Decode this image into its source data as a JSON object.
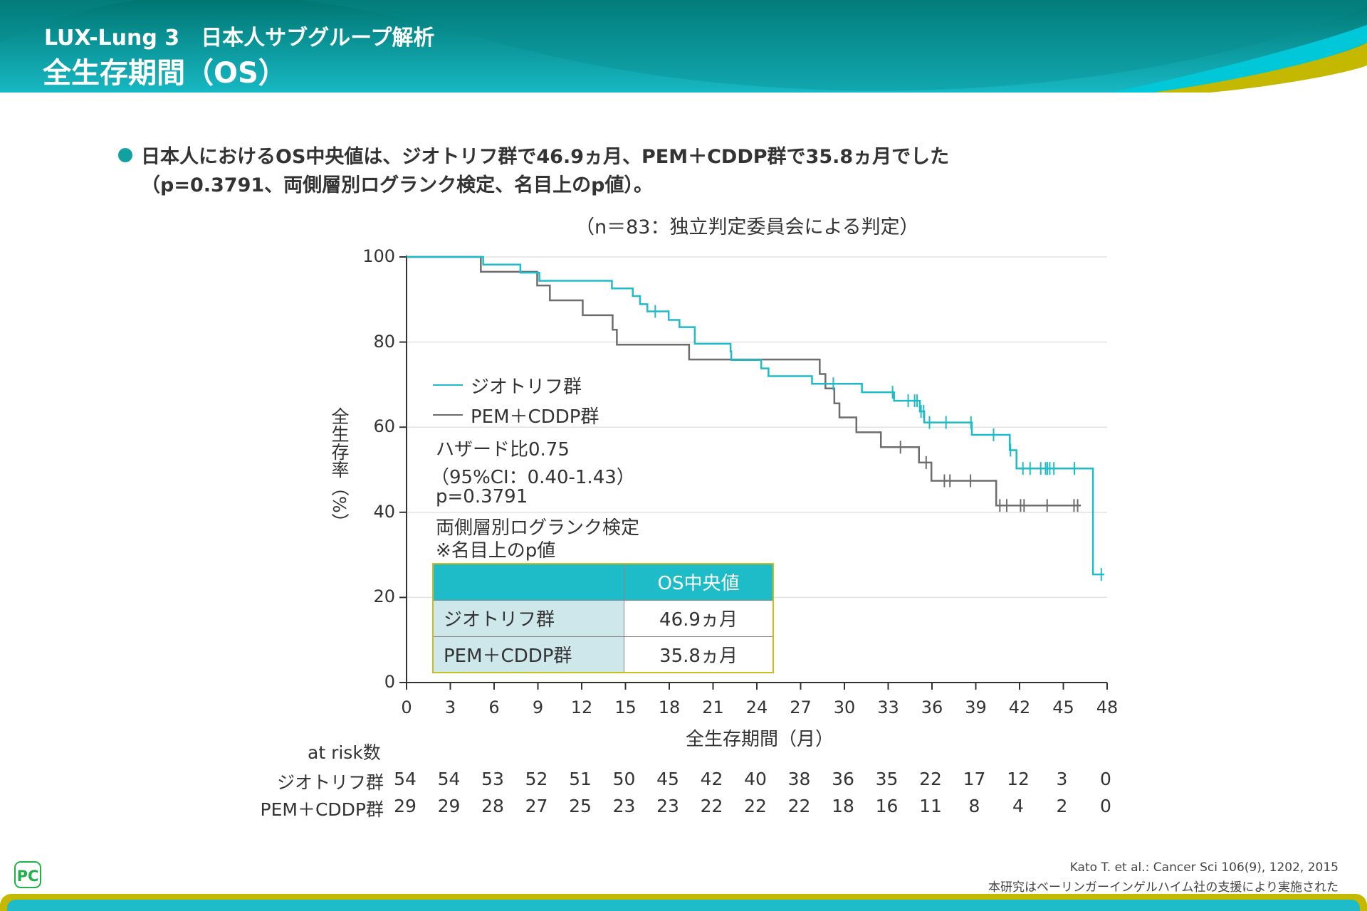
{
  "header": {
    "title_line1": "LUX-Lung 3　日本人サブグループ解析",
    "title_line2": "全生存期間（OS）"
  },
  "lead": {
    "line1": "日本人におけるOS中央値は、ジオトリフ群で46.9ヵ月、PEM＋CDDP群で35.8ヵ月でした",
    "line2": "（p=0.3791、両側層別ログランク検定、名目上のp値）。"
  },
  "colors": {
    "afatinib": "#1dbcc8",
    "pem_cddp": "#6d6d6d",
    "header": "#0a8a8c",
    "accent_olive": "#c4b800"
  },
  "chart_data": {
    "type": "line",
    "subtitle": "（n＝83：独立判定委員会による判定）",
    "xlabel": "全生存期間（月）",
    "ylabel": "全生存率（%）",
    "xlim": [
      0,
      48
    ],
    "ylim": [
      0,
      100
    ],
    "xticks": [
      "0",
      "3",
      "6",
      "9",
      "12",
      "15",
      "18",
      "21",
      "24",
      "27",
      "30",
      "33",
      "36",
      "39",
      "42",
      "45",
      "48"
    ],
    "yticks": [
      "0",
      "20",
      "40",
      "60",
      "80",
      "100"
    ],
    "grid": true,
    "legend_placement": "middle-left",
    "series": [
      {
        "name": "ジオトリフ群",
        "step": [
          [
            0,
            100
          ],
          [
            5.25,
            98.2
          ],
          [
            7.8,
            96.3
          ],
          [
            9.1,
            94.4
          ],
          [
            14.07,
            92.6
          ],
          [
            15.5,
            90.8
          ],
          [
            16.0,
            88.9
          ],
          [
            16.5,
            87.2
          ],
          [
            17.96,
            85.2
          ],
          [
            18.7,
            83.5
          ],
          [
            19.75,
            79.6
          ],
          [
            22.2,
            77.8
          ],
          [
            22.25,
            75.8
          ],
          [
            24.3,
            73.8
          ],
          [
            24.8,
            72.0
          ],
          [
            27.78,
            70.2
          ],
          [
            31.2,
            68.2
          ],
          [
            33.4,
            66.2
          ],
          [
            35.17,
            63.7
          ],
          [
            35.47,
            61.1
          ],
          [
            38.73,
            58.2
          ],
          [
            41.33,
            54.6
          ],
          [
            41.79,
            50.3
          ],
          [
            47.03,
            25.4
          ],
          [
            47.8,
            25.4
          ]
        ],
        "censored": [
          17.04,
          29.24,
          33.3,
          34.37,
          34.81,
          34.98,
          35.25,
          35.43,
          35.83,
          36.96,
          38.67,
          40.22,
          41.38,
          42.23,
          42.72,
          43.45,
          43.78,
          43.9,
          44.07,
          44.35,
          45.76,
          47.6
        ]
      },
      {
        "name": "PEM＋CDDP群",
        "step": [
          [
            0,
            100
          ],
          [
            5.09,
            96.5
          ],
          [
            8.95,
            93.3
          ],
          [
            9.82,
            89.8
          ],
          [
            12.07,
            86.3
          ],
          [
            14.12,
            82.9
          ],
          [
            14.41,
            79.4
          ],
          [
            19.36,
            75.9
          ],
          [
            28.31,
            72.5
          ],
          [
            28.7,
            69.1
          ],
          [
            29.31,
            65.6
          ],
          [
            29.66,
            62.3
          ],
          [
            30.82,
            58.8
          ],
          [
            32.5,
            55.3
          ],
          [
            35.11,
            51.7
          ],
          [
            35.96,
            47.4
          ],
          [
            40.4,
            41.6
          ],
          [
            46.2,
            41.6
          ]
        ],
        "censored": [
          33.84,
          35.6,
          36.85,
          37.23,
          38.64,
          40.65,
          41.12,
          42.07,
          42.31,
          43.89,
          45.73,
          45.98
        ]
      }
    ],
    "annotations": {
      "hazard_ratio": "ハザード比0.75",
      "ci": "（95%CI：0.40-1.43）",
      "p_value": "p=0.3791",
      "test": "両側層別ログランク検定",
      "note": "※名目上のp値"
    },
    "median_table": {
      "header": "OS中央値",
      "rows": [
        {
          "group": "ジオトリフ群",
          "value": "46.9ヵ月"
        },
        {
          "group": "PEM＋CDDP群",
          "value": "35.8ヵ月"
        }
      ]
    },
    "at_risk": {
      "label": "at risk数",
      "rows": [
        {
          "group": "ジオトリフ群",
          "values": [
            "54",
            "54",
            "53",
            "52",
            "51",
            "50",
            "45",
            "42",
            "40",
            "38",
            "36",
            "35",
            "22",
            "17",
            "12",
            "3",
            "0"
          ]
        },
        {
          "group": "PEM＋CDDP群",
          "values": [
            "29",
            "29",
            "28",
            "27",
            "25",
            "23",
            "23",
            "22",
            "22",
            "22",
            "18",
            "16",
            "11",
            "8",
            "4",
            "2",
            "0"
          ]
        }
      ]
    }
  },
  "footer": {
    "logo": "PC",
    "citation": "Kato T. et al.: Cancer Sci 106(9), 1202, 2015",
    "support": "本研究はベーリンガーインゲルハイム社の支援により実施された"
  }
}
